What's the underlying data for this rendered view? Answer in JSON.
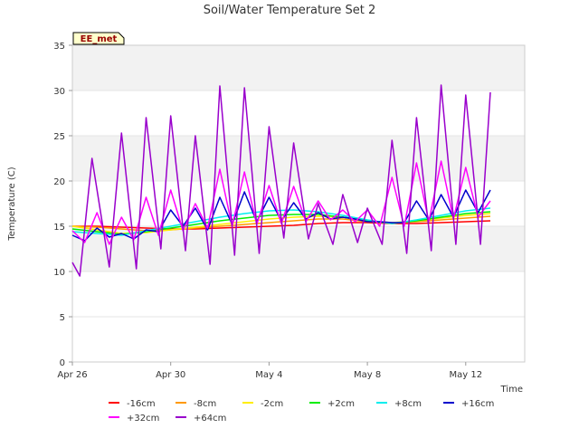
{
  "chart_data": {
    "type": "line",
    "title": "Soil/Water Temperature Set 2",
    "xlabel": "Time",
    "ylabel": "Temperature (C)",
    "badge": "EE_met",
    "x_range": [
      "2024-04-26",
      "2024-05-14"
    ],
    "xticks": [
      "Apr 26",
      "Apr 30",
      "May 4",
      "May 8",
      "May 12"
    ],
    "xtick_days": [
      0,
      4,
      8,
      12,
      16
    ],
    "ylim": [
      0,
      35
    ],
    "yticks": [
      0,
      5,
      10,
      15,
      20,
      25,
      30,
      35
    ],
    "grid": "horizontal bands",
    "legend_position": "bottom",
    "legend": [
      "-16cm",
      "-8cm",
      "-2cm",
      "+2cm",
      "+8cm",
      "+16cm",
      "+32cm",
      "+64cm"
    ],
    "series": [
      {
        "name": "-16cm",
        "color": "#ff0000",
        "x": [
          0,
          1,
          2,
          3,
          4,
          5,
          6,
          7,
          8,
          9,
          10,
          11,
          12,
          13,
          14,
          15,
          16,
          17
        ],
        "y": [
          15.0,
          15.0,
          14.9,
          14.8,
          14.7,
          14.7,
          14.8,
          14.9,
          15.0,
          15.1,
          15.3,
          15.4,
          15.4,
          15.3,
          15.3,
          15.4,
          15.5,
          15.6
        ]
      },
      {
        "name": "-8cm",
        "color": "#ff9900",
        "x": [
          0,
          1,
          2,
          3,
          4,
          5,
          6,
          7,
          8,
          9,
          10,
          11,
          12,
          13,
          14,
          15,
          16,
          17
        ],
        "y": [
          15.0,
          14.9,
          14.7,
          14.5,
          14.6,
          14.8,
          15.0,
          15.2,
          15.4,
          15.6,
          15.8,
          15.8,
          15.5,
          15.4,
          15.5,
          15.7,
          15.9,
          16.1
        ]
      },
      {
        "name": "-2cm",
        "color": "#ffee00",
        "x": [
          0,
          1,
          2,
          3,
          4,
          5,
          6,
          7,
          8,
          9,
          10,
          11,
          12,
          13,
          14,
          15,
          16,
          17
        ],
        "y": [
          15.0,
          14.6,
          14.2,
          14.3,
          14.6,
          14.9,
          15.2,
          15.5,
          15.8,
          16.0,
          16.1,
          16.0,
          15.6,
          15.4,
          15.6,
          15.9,
          16.2,
          16.4
        ]
      },
      {
        "name": "+2cm",
        "color": "#00ee00",
        "x": [
          0,
          1,
          2,
          3,
          4,
          5,
          6,
          7,
          8,
          9,
          10,
          11,
          12,
          13,
          14,
          15,
          16,
          17
        ],
        "y": [
          14.7,
          14.4,
          14.1,
          14.4,
          14.8,
          15.2,
          15.6,
          15.9,
          16.2,
          16.3,
          16.3,
          16.0,
          15.6,
          15.3,
          15.6,
          16.0,
          16.4,
          16.6
        ]
      },
      {
        "name": "+8cm",
        "color": "#00eeee",
        "x": [
          0,
          1,
          2,
          3,
          4,
          5,
          6,
          7,
          8,
          9,
          10,
          11,
          12,
          13,
          14,
          15,
          16,
          17
        ],
        "y": [
          14.4,
          14.2,
          14.0,
          14.5,
          15.0,
          15.5,
          16.0,
          16.4,
          16.7,
          16.8,
          16.6,
          16.2,
          15.7,
          15.3,
          15.7,
          16.2,
          16.7,
          17.0
        ]
      },
      {
        "name": "+16cm",
        "color": "#0000cc",
        "x": [
          0,
          0.5,
          1,
          1.5,
          2,
          2.5,
          3,
          3.5,
          4,
          4.5,
          5,
          5.5,
          6,
          6.5,
          7,
          7.5,
          8,
          8.5,
          9,
          9.5,
          10,
          10.5,
          11,
          11.5,
          12,
          12.5,
          13,
          13.5,
          14,
          14.5,
          15,
          15.5,
          16,
          16.5,
          17
        ],
        "y": [
          14.0,
          13.4,
          14.8,
          13.8,
          14.2,
          13.6,
          14.6,
          14.4,
          16.8,
          15.0,
          17.0,
          14.6,
          18.2,
          15.2,
          18.8,
          15.5,
          18.2,
          15.6,
          17.6,
          15.8,
          16.5,
          15.8,
          16.0,
          15.8,
          15.5,
          15.5,
          15.4,
          15.4,
          17.8,
          15.7,
          18.5,
          16.0,
          19.0,
          16.5,
          19.0
        ]
      },
      {
        "name": "+32cm",
        "color": "#ff00ff",
        "x": [
          0,
          0.5,
          1,
          1.5,
          2,
          2.5,
          3,
          3.5,
          4,
          4.5,
          5,
          5.5,
          6,
          6.5,
          7,
          7.5,
          8,
          8.5,
          9,
          9.5,
          10,
          10.5,
          11,
          11.5,
          12,
          12.5,
          13,
          13.5,
          14,
          14.5,
          15,
          15.5,
          16,
          16.5,
          17
        ],
        "y": [
          14.5,
          13.2,
          16.5,
          13.0,
          16.0,
          13.5,
          18.2,
          14.0,
          19.0,
          14.5,
          17.5,
          14.8,
          21.3,
          15.0,
          21.0,
          15.2,
          19.5,
          15.3,
          19.4,
          15.5,
          17.8,
          15.7,
          16.8,
          15.5,
          16.8,
          15.0,
          20.4,
          15.0,
          22.0,
          15.5,
          22.2,
          15.8,
          21.5,
          16.0,
          17.8
        ]
      },
      {
        "name": "+64cm",
        "color": "#9900cc",
        "x": [
          0,
          0.3,
          0.8,
          1.5,
          2,
          2.6,
          3,
          3.6,
          4,
          4.6,
          5,
          5.6,
          6,
          6.6,
          7,
          7.6,
          8,
          8.6,
          9,
          9.6,
          10,
          10.6,
          11,
          11.6,
          12,
          12.6,
          13,
          13.6,
          14,
          14.6,
          15,
          15.6,
          16,
          16.6,
          17
        ],
        "y": [
          11.0,
          9.5,
          22.5,
          10.5,
          25.3,
          10.3,
          27.0,
          12.5,
          27.2,
          12.3,
          25.0,
          10.8,
          30.5,
          11.8,
          30.3,
          12.0,
          26.0,
          13.7,
          24.2,
          13.6,
          17.5,
          13.0,
          18.5,
          13.2,
          17.0,
          13.0,
          24.5,
          12.0,
          27.0,
          12.3,
          30.6,
          13.0,
          29.5,
          13.0,
          29.8
        ]
      }
    ]
  }
}
